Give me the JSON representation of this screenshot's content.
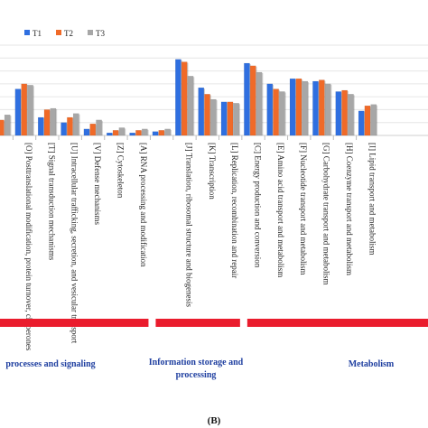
{
  "chart_data": {
    "type": "bar",
    "panel_label": "(B)",
    "series": [
      {
        "name": "T1",
        "color": "#2f6fe0",
        "values": [
          0.4,
          3.6,
          1.4,
          1.0,
          0.5,
          0.2,
          0.2,
          0.3,
          5.9,
          3.7,
          2.6,
          5.6,
          4.0,
          4.4,
          4.2,
          3.4,
          1.9
        ]
      },
      {
        "name": "T2",
        "color": "#f06a28",
        "values": [
          1.2,
          4.0,
          2.0,
          1.4,
          0.9,
          0.4,
          0.4,
          0.4,
          5.7,
          3.2,
          2.6,
          5.4,
          3.6,
          4.4,
          4.3,
          3.5,
          2.3
        ]
      },
      {
        "name": "T3",
        "color": "#a7a7a7",
        "values": [
          1.6,
          3.9,
          2.1,
          1.7,
          1.2,
          0.6,
          0.5,
          0.5,
          4.6,
          2.8,
          2.5,
          4.9,
          3.4,
          4.2,
          4.0,
          3.2,
          2.4
        ]
      }
    ],
    "categories": [
      "",
      "[O] Posttranslational modification, protein turnover, chaperones",
      "[T] Signal transduction mechanisms",
      "[U] Intracellular trafficking, secretion, and vesicular transport",
      "[V] Defense mechanisms",
      "[Z] Cytoskeleton",
      "[A] RNA processing and modification",
      "",
      "[J] Translation, ribosomal structure and biogenesis",
      "[K] Transcription",
      "[L] Replication, recombination and repair",
      "[C] Energy production and conversion",
      "[E] Amino acid transport and metabolism",
      "[F] Nucleotide transport and metabolism",
      "[G] Carbohydrate transport and metabolism",
      "[H] Coenzyme transport and metabolism",
      "[I] Lipid transport and metabolism"
    ],
    "groups": [
      {
        "label": "processes and signaling",
        "from": 0,
        "to": 6
      },
      {
        "label": "Information storage and processing",
        "from": 7,
        "to": 10
      },
      {
        "label": "Metabolism",
        "from": 11,
        "to": 16
      }
    ],
    "legend_position": "top-left",
    "grid": true,
    "ylim": [
      0,
      7
    ]
  }
}
